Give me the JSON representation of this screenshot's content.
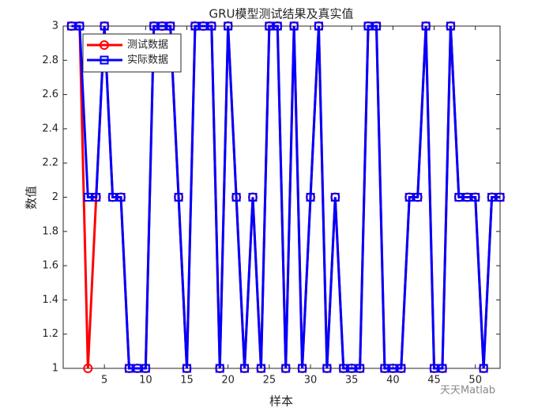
{
  "chart_data": {
    "type": "line",
    "title": "GRU模型测试结果及真实值",
    "x_label": "样本",
    "y_label": "数值",
    "x": [
      1,
      2,
      3,
      4,
      5,
      6,
      7,
      8,
      9,
      10,
      11,
      12,
      13,
      14,
      15,
      16,
      17,
      18,
      19,
      20,
      21,
      22,
      23,
      24,
      25,
      26,
      27,
      28,
      29,
      30,
      31,
      32,
      33,
      34,
      35,
      36,
      37,
      38,
      39,
      40,
      41,
      42,
      43,
      44,
      45,
      46,
      47,
      48,
      49,
      50,
      51,
      52,
      53
    ],
    "series": [
      {
        "name": "测试数据",
        "color": "#ff0000",
        "marker": "circle",
        "values": [
          3,
          3,
          1,
          2,
          3,
          2,
          2,
          1,
          1,
          1,
          3,
          3,
          3,
          2,
          1,
          3,
          3,
          3,
          1,
          3,
          2,
          1,
          2,
          1,
          3,
          3,
          1,
          3,
          1,
          2,
          3,
          1,
          2,
          1,
          1,
          1,
          3,
          3,
          1,
          1,
          1,
          2,
          2,
          3,
          1,
          1,
          3,
          2,
          2,
          2,
          1,
          2,
          2
        ]
      },
      {
        "name": "实际数据",
        "color": "#0000ff",
        "marker": "square",
        "values": [
          3,
          3,
          2,
          2,
          3,
          2,
          2,
          1,
          1,
          1,
          3,
          3,
          3,
          2,
          1,
          3,
          3,
          3,
          1,
          3,
          2,
          1,
          2,
          1,
          3,
          3,
          1,
          3,
          1,
          2,
          3,
          1,
          2,
          1,
          1,
          1,
          3,
          3,
          1,
          1,
          1,
          2,
          2,
          3,
          1,
          1,
          3,
          2,
          2,
          2,
          1,
          2,
          2
        ]
      }
    ],
    "xlim": [
      0,
      53
    ],
    "xticks": [
      5,
      10,
      15,
      20,
      25,
      30,
      35,
      40,
      45,
      50
    ],
    "ylim": [
      1,
      3
    ],
    "yticks": [
      1,
      1.2,
      1.4,
      1.6,
      1.8,
      2,
      2.2,
      2.4,
      2.6,
      2.8,
      3
    ],
    "grid": false,
    "legend_location": "northwest",
    "watermark": "天天Matlab"
  }
}
